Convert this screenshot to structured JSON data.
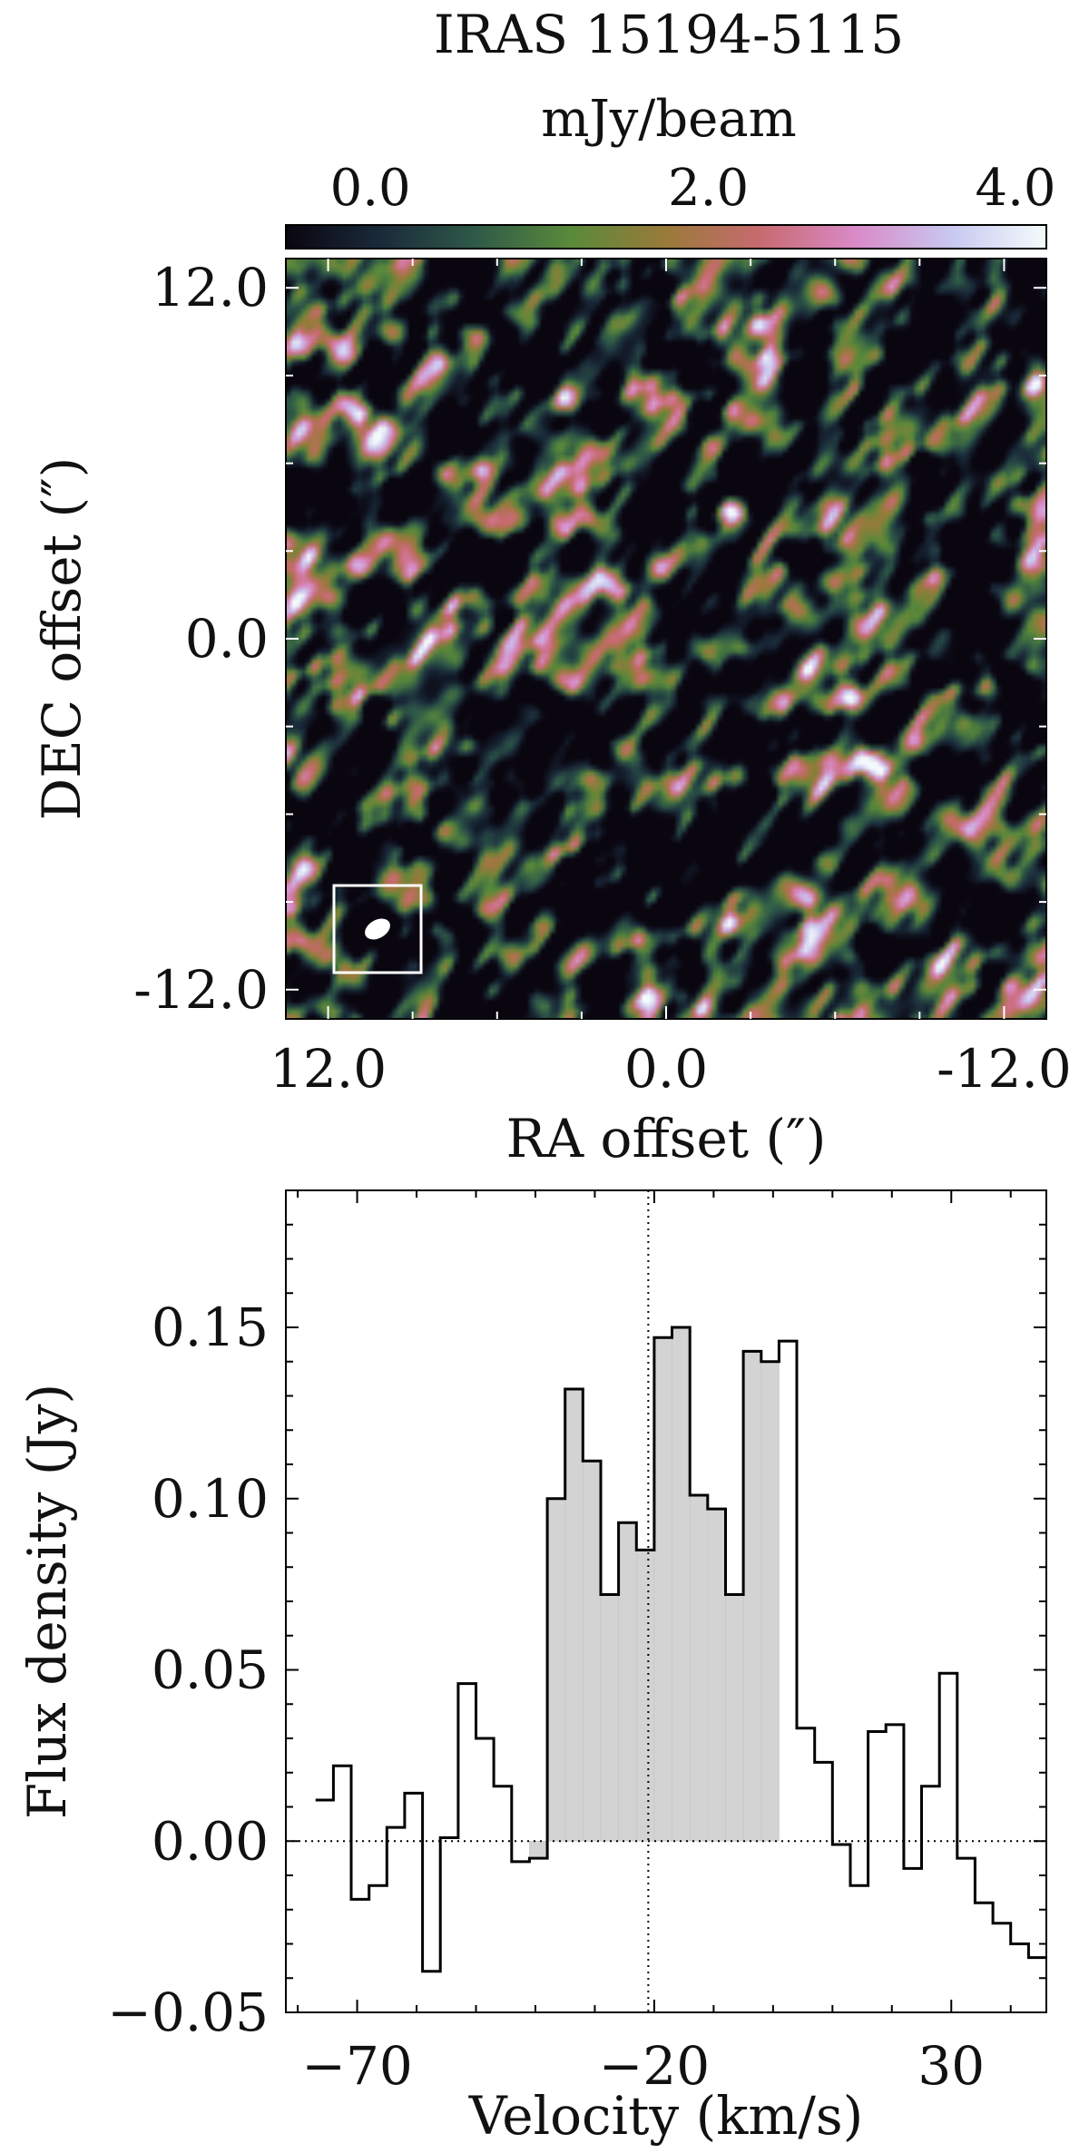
{
  "chart_data": [
    {
      "type": "heatmap",
      "title": "IRAS 15194-5115",
      "colorbar": {
        "label": "mJy/beam",
        "ticks": [
          "0.0",
          "2.0",
          "4.0"
        ],
        "range": [
          -0.5,
          4.0
        ],
        "placement": "top"
      },
      "xlabel": "RA offset (″)",
      "ylabel": "DEC offset (″)",
      "xticks": [
        "12.0",
        "0.0",
        "-12.0"
      ],
      "yticks": [
        "12.0",
        "0.0",
        "-12.0"
      ],
      "xlim": [
        13.5,
        -13.5
      ],
      "ylim": [
        -13.0,
        13.0
      ],
      "colors": [
        "#0a0610",
        "#1a2a3a",
        "#2f5a48",
        "#5a8a3a",
        "#9a7a3a",
        "#c86a70",
        "#d98ac8",
        "#c8c8f0",
        "#f4fbfb"
      ],
      "beam_marker": "white ellipse in boxed lower-left corner",
      "texture_seed": 15194
    },
    {
      "type": "line",
      "subtype": "step-histogram",
      "xlabel": "Velocity (km/s)",
      "ylabel": "Flux density (Jy)",
      "xlim": [
        -82,
        46
      ],
      "ylim": [
        -0.05,
        0.19
      ],
      "xticks": [
        -70,
        -20,
        30
      ],
      "xtick_labels": [
        "−70",
        "−20",
        "30"
      ],
      "yticks": [
        -0.05,
        0.0,
        0.05,
        0.1,
        0.15
      ],
      "ytick_labels": [
        "−0.05",
        "0.00",
        "0.05",
        "0.10",
        "0.15"
      ],
      "reference_lines": {
        "x": -21,
        "y": 0.0,
        "style": "dotted"
      },
      "shaded_interval": [
        -43,
        2
      ],
      "bin_width": 3,
      "x": [
        -75.5,
        -72.5,
        -69.5,
        -66.5,
        -63.5,
        -60.5,
        -57.5,
        -54.5,
        -51.5,
        -48.5,
        -45.5,
        -42.5,
        -39.5,
        -36.5,
        -33.5,
        -30.5,
        -27.5,
        -24.5,
        -21.5,
        -18.5,
        -15.5,
        -12.5,
        -9.5,
        -6.5,
        -3.5,
        -0.5,
        2.5,
        5.5,
        8.5,
        11.5,
        14.5,
        17.5,
        20.5,
        23.5,
        26.5,
        29.5,
        32.5,
        35.5,
        38.5,
        41.5,
        44.5
      ],
      "y": [
        0.012,
        0.022,
        -0.017,
        -0.013,
        0.004,
        0.014,
        -0.038,
        0.001,
        0.046,
        0.03,
        0.016,
        -0.006,
        -0.005,
        0.1,
        0.132,
        0.111,
        0.072,
        0.093,
        0.085,
        0.147,
        0.15,
        0.101,
        0.097,
        0.072,
        0.143,
        0.14,
        0.146,
        0.033,
        0.023,
        -0.001,
        -0.013,
        0.032,
        0.034,
        -0.008,
        0.016,
        0.049,
        -0.005,
        -0.018,
        -0.024,
        -0.03,
        -0.034
      ]
    }
  ]
}
